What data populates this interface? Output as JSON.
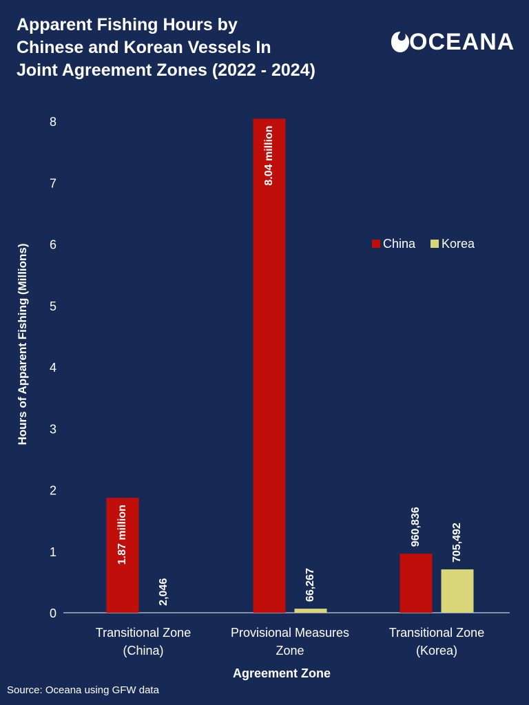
{
  "title_lines": [
    "Apparent Fishing Hours by",
    "Chinese and Korean Vessels In",
    "Joint Agreement Zones (2022 - 2024)"
  ],
  "logo": "OCEANA",
  "source": "Source: Oceana using GFW data",
  "colors": {
    "background": "#162a55",
    "china": "#c00f0a",
    "korea": "#d9d67a",
    "text": "#ffffff"
  },
  "chart_data": {
    "type": "bar",
    "title": "Apparent Fishing Hours by Chinese and Korean Vessels In Joint Agreement Zones (2022 - 2024)",
    "xlabel": "Agreement Zone",
    "ylabel": "Hours of Apparent Fishing (Millions)",
    "ylim": [
      0,
      8
    ],
    "yticks": [
      0,
      1,
      2,
      3,
      4,
      5,
      6,
      7,
      8
    ],
    "grid": false,
    "legend_position": "right",
    "categories": [
      [
        "Transitional Zone",
        "(China)"
      ],
      [
        "Provisional Measures",
        "Zone"
      ],
      [
        "Transitional Zone",
        "(Korea)"
      ]
    ],
    "series": [
      {
        "name": "China",
        "color": "#c00f0a",
        "values": [
          1.87,
          8.04,
          0.960836
        ],
        "labels": [
          "1.87 million",
          "8.04 million",
          "960,836"
        ],
        "label_inside": [
          true,
          true,
          false
        ]
      },
      {
        "name": "Korea",
        "color": "#d9d67a",
        "values": [
          0.002046,
          0.066267,
          0.705492
        ],
        "labels": [
          "2,046",
          "66,267",
          "705,492"
        ],
        "label_inside": [
          false,
          false,
          false
        ]
      }
    ]
  }
}
